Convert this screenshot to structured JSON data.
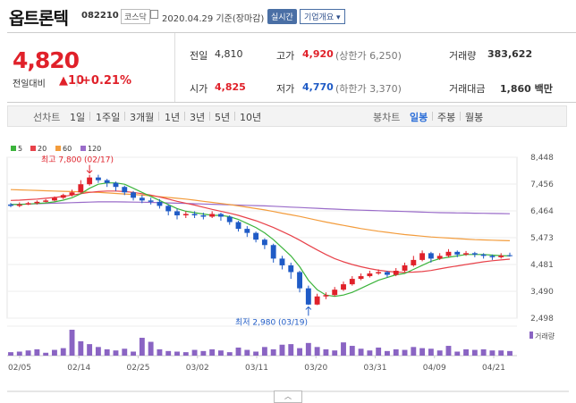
{
  "header": {
    "name": "옵트론텍",
    "code": "082210",
    "market": "코스닥",
    "date": "2020.04.29 기준(장마감)",
    "realtime": "실시간",
    "company_info": "기업개요 ▾"
  },
  "quote": {
    "price": "4,820",
    "change_label": "전일대비",
    "change": "▲10",
    "change_pct": "+0.21%",
    "prev_label": "전일",
    "prev": "4,810",
    "high_label": "고가",
    "high": "4,920",
    "upper_limit": "(상한가 6,250)",
    "volume_label": "거래량",
    "volume": "383,622",
    "open_label": "시가",
    "open": "4,825",
    "low_label": "저가",
    "low": "4,770",
    "lower_limit": "(하한가 3,370)",
    "amount_label": "거래대금",
    "amount": "1,860 백만"
  },
  "tabs": {
    "line_label": "선차트",
    "periods": [
      "1일",
      "1주일",
      "3개월",
      "1년",
      "3년",
      "5년",
      "10년"
    ],
    "candle_label": "봉차트",
    "candles": [
      "일봉",
      "주봉",
      "월봉"
    ]
  },
  "chart_data": {
    "type": "line",
    "legend": [
      "5",
      "20",
      "60",
      "120"
    ],
    "legend_colors": [
      "#3cb43c",
      "#e8424a",
      "#f39c3c",
      "#9a6cc9"
    ],
    "yticks": [
      "8,448",
      "7,456",
      "6,464",
      "5,473",
      "4,481",
      "3,490",
      "2,498"
    ],
    "xticks": [
      "02/05",
      "02/14",
      "02/25",
      "03/02",
      "03/11",
      "03/20",
      "03/31",
      "04/09",
      "04/21"
    ],
    "ylim": [
      2498,
      8448
    ],
    "max_label": "최고 7,800 (02/17)",
    "min_label": "최저 2,980 (03/19)",
    "volume_label": "거래량",
    "colors": {
      "up": "#e0212a",
      "down": "#1f5bc6",
      "volume": "#8a64c3"
    },
    "candles": [
      [
        6700,
        6650,
        6760,
        6600
      ],
      [
        6650,
        6700,
        6780,
        6600
      ],
      [
        6700,
        6750,
        6800,
        6680
      ],
      [
        6750,
        6800,
        6850,
        6700
      ],
      [
        6800,
        6850,
        6900,
        6780
      ],
      [
        6850,
        6950,
        7000,
        6820
      ],
      [
        6950,
        7050,
        7100,
        6900
      ],
      [
        7050,
        7150,
        7250,
        7000
      ],
      [
        7150,
        7450,
        7600,
        7100
      ],
      [
        7450,
        7700,
        7800,
        7400
      ],
      [
        7700,
        7600,
        7800,
        7500
      ],
      [
        7600,
        7500,
        7650,
        7350
      ],
      [
        7500,
        7350,
        7550,
        7200
      ],
      [
        7350,
        7150,
        7400,
        7050
      ],
      [
        7150,
        6950,
        7200,
        6850
      ],
      [
        6950,
        6850,
        7050,
        6750
      ],
      [
        6850,
        6800,
        6950,
        6700
      ],
      [
        6800,
        6650,
        6900,
        6550
      ],
      [
        6650,
        6450,
        6700,
        6300
      ],
      [
        6450,
        6300,
        6550,
        6150
      ],
      [
        6300,
        6350,
        6450,
        6200
      ],
      [
        6350,
        6300,
        6450,
        6200
      ],
      [
        6300,
        6250,
        6400,
        6150
      ],
      [
        6250,
        6350,
        6450,
        6200
      ],
      [
        6350,
        6250,
        6400,
        6100
      ],
      [
        6250,
        6050,
        6300,
        5950
      ],
      [
        6050,
        5800,
        6100,
        5700
      ],
      [
        5800,
        5650,
        5900,
        5500
      ],
      [
        5650,
        5400,
        5700,
        5300
      ],
      [
        5400,
        5200,
        5450,
        5050
      ],
      [
        5200,
        4700,
        5250,
        4550
      ],
      [
        4700,
        4450,
        4800,
        4300
      ],
      [
        4450,
        4200,
        4550,
        3950
      ],
      [
        4200,
        3600,
        4250,
        3450
      ],
      [
        3600,
        3000,
        3700,
        2980
      ],
      [
        3000,
        3300,
        3400,
        2980
      ],
      [
        3300,
        3350,
        3450,
        3200
      ],
      [
        3350,
        3550,
        3650,
        3300
      ],
      [
        3550,
        3750,
        3850,
        3500
      ],
      [
        3750,
        3950,
        4050,
        3700
      ],
      [
        3950,
        4050,
        4150,
        3900
      ],
      [
        4050,
        4150,
        4250,
        4000
      ],
      [
        4150,
        4200,
        4300,
        4100
      ],
      [
        4200,
        4100,
        4250,
        4000
      ],
      [
        4100,
        4250,
        4350,
        4050
      ],
      [
        4250,
        4450,
        4550,
        4200
      ],
      [
        4450,
        4650,
        4800,
        4400
      ],
      [
        4650,
        4900,
        5000,
        4600
      ],
      [
        4900,
        4700,
        4950,
        4550
      ],
      [
        4700,
        4800,
        4900,
        4650
      ],
      [
        4800,
        4950,
        5050,
        4750
      ],
      [
        4950,
        4850,
        5000,
        4750
      ],
      [
        4850,
        4900,
        4980,
        4800
      ],
      [
        4900,
        4850,
        4950,
        4750
      ],
      [
        4850,
        4800,
        4900,
        4700
      ],
      [
        4800,
        4750,
        4850,
        4650
      ],
      [
        4750,
        4810,
        4900,
        4700
      ],
      [
        4825,
        4820,
        4920,
        4770
      ]
    ],
    "ma5": [
      6700,
      6700,
      6720,
      6740,
      6760,
      6800,
      6860,
      6950,
      7100,
      7300,
      7450,
      7500,
      7500,
      7450,
      7300,
      7150,
      7000,
      6850,
      6700,
      6550,
      6450,
      6400,
      6350,
      6300,
      6300,
      6250,
      6150,
      6000,
      5850,
      5650,
      5400,
      5100,
      4800,
      4400,
      3900,
      3550,
      3350,
      3300,
      3350,
      3450,
      3600,
      3750,
      3900,
      4000,
      4100,
      4150,
      4300,
      4450,
      4600,
      4700,
      4750,
      4800,
      4850,
      4850,
      4850,
      4830,
      4810,
      4800
    ],
    "ma20": [
      6850,
      6860,
      6880,
      6900,
      6930,
      6960,
      7000,
      7050,
      7100,
      7150,
      7180,
      7200,
      7200,
      7180,
      7150,
      7100,
      7050,
      6980,
      6900,
      6820,
      6750,
      6680,
      6600,
      6520,
      6450,
      6380,
      6300,
      6200,
      6100,
      5980,
      5850,
      5700,
      5550,
      5380,
      5200,
      5020,
      4850,
      4700,
      4580,
      4480,
      4400,
      4330,
      4270,
      4230,
      4200,
      4190,
      4200,
      4220,
      4260,
      4320,
      4380,
      4430,
      4480,
      4530,
      4580,
      4620,
      4650,
      4680
    ],
    "ma60": [
      7250,
      7240,
      7230,
      7220,
      7210,
      7200,
      7190,
      7180,
      7170,
      7160,
      7150,
      7130,
      7110,
      7090,
      7070,
      7050,
      7020,
      6990,
      6960,
      6930,
      6900,
      6860,
      6820,
      6780,
      6740,
      6700,
      6650,
      6600,
      6550,
      6500,
      6440,
      6380,
      6320,
      6260,
      6190,
      6120,
      6050,
      5990,
      5930,
      5870,
      5810,
      5760,
      5710,
      5670,
      5630,
      5590,
      5560,
      5530,
      5500,
      5480,
      5460,
      5440,
      5420,
      5400,
      5390,
      5380,
      5370,
      5360
    ],
    "ma120": [
      6700,
      6710,
      6720,
      6730,
      6740,
      6750,
      6760,
      6770,
      6780,
      6790,
      6800,
      6800,
      6800,
      6795,
      6790,
      6785,
      6780,
      6770,
      6760,
      6750,
      6740,
      6730,
      6720,
      6710,
      6700,
      6690,
      6680,
      6670,
      6660,
      6650,
      6635,
      6620,
      6605,
      6590,
      6575,
      6560,
      6545,
      6530,
      6515,
      6500,
      6490,
      6480,
      6470,
      6460,
      6450,
      6440,
      6430,
      6420,
      6410,
      6400,
      6395,
      6390,
      6385,
      6380,
      6375,
      6370,
      6365,
      6360
    ],
    "volumes": [
      12,
      14,
      18,
      22,
      10,
      20,
      26,
      90,
      50,
      40,
      30,
      22,
      18,
      24,
      14,
      62,
      48,
      22,
      16,
      14,
      12,
      20,
      16,
      22,
      18,
      12,
      28,
      20,
      14,
      30,
      22,
      38,
      40,
      26,
      44,
      30,
      22,
      18,
      46,
      34,
      24,
      18,
      28,
      16,
      22,
      20,
      30,
      26,
      24,
      18,
      34,
      14,
      22,
      20,
      22,
      18,
      18,
      16
    ]
  }
}
